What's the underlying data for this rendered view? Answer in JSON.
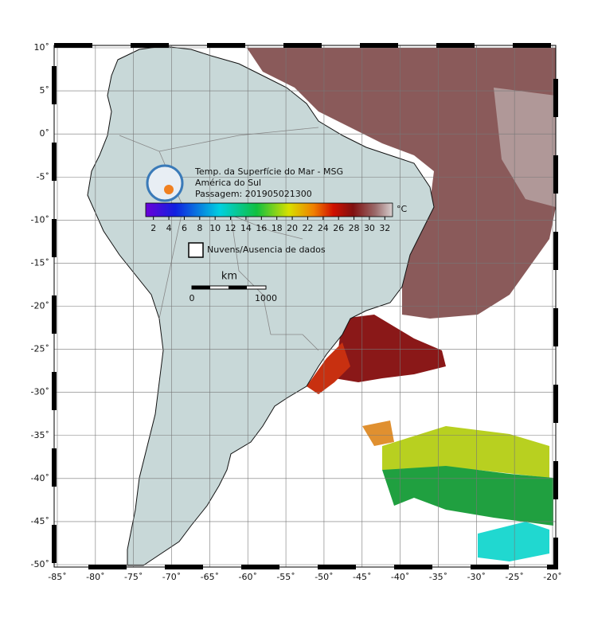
{
  "map": {
    "title_lines": [
      "Temp. da Superfície do Mar - MSG",
      "América do Sul",
      "Passagem: 201905021300"
    ],
    "colorbar": {
      "unit": "°C",
      "lim": [
        1,
        33
      ],
      "ticks": [
        2,
        4,
        6,
        8,
        10,
        12,
        14,
        16,
        18,
        20,
        22,
        24,
        26,
        28,
        30,
        32
      ]
    },
    "legend_label": "Nuvens/Ausencia de dados",
    "scalebar": {
      "unit": "km",
      "start": "0",
      "end": "1000"
    },
    "xlim": [
      -85,
      -20
    ],
    "ylim": [
      -50,
      10
    ],
    "xticks": [
      {
        "value": -85,
        "label": "-85˚"
      },
      {
        "value": -80,
        "label": "-80˚"
      },
      {
        "value": -75,
        "label": "-75˚"
      },
      {
        "value": -70,
        "label": "-70˚"
      },
      {
        "value": -65,
        "label": "-65˚"
      },
      {
        "value": -60,
        "label": "-60˚"
      },
      {
        "value": -55,
        "label": "-55˚"
      },
      {
        "value": -50,
        "label": "-50˚"
      },
      {
        "value": -45,
        "label": "-45˚"
      },
      {
        "value": -40,
        "label": "-40˚"
      },
      {
        "value": -35,
        "label": "-35˚"
      },
      {
        "value": -30,
        "label": "-30˚"
      },
      {
        "value": -25,
        "label": "-25˚"
      },
      {
        "value": -20,
        "label": "-20˚"
      }
    ],
    "yticks": [
      {
        "value": 10,
        "label": "10˚"
      },
      {
        "value": 5,
        "label": "5˚"
      },
      {
        "value": 0,
        "label": "0˚"
      },
      {
        "value": -5,
        "label": "-5˚"
      },
      {
        "value": -10,
        "label": "-10˚"
      },
      {
        "value": -15,
        "label": "-15˚"
      },
      {
        "value": -20,
        "label": "-20˚"
      },
      {
        "value": -25,
        "label": "-25˚"
      },
      {
        "value": -30,
        "label": "-30˚"
      },
      {
        "value": -35,
        "label": "-35˚"
      },
      {
        "value": -40,
        "label": "-40˚"
      },
      {
        "value": -45,
        "label": "-45˚"
      },
      {
        "value": -50,
        "label": "-50˚"
      }
    ]
  }
}
